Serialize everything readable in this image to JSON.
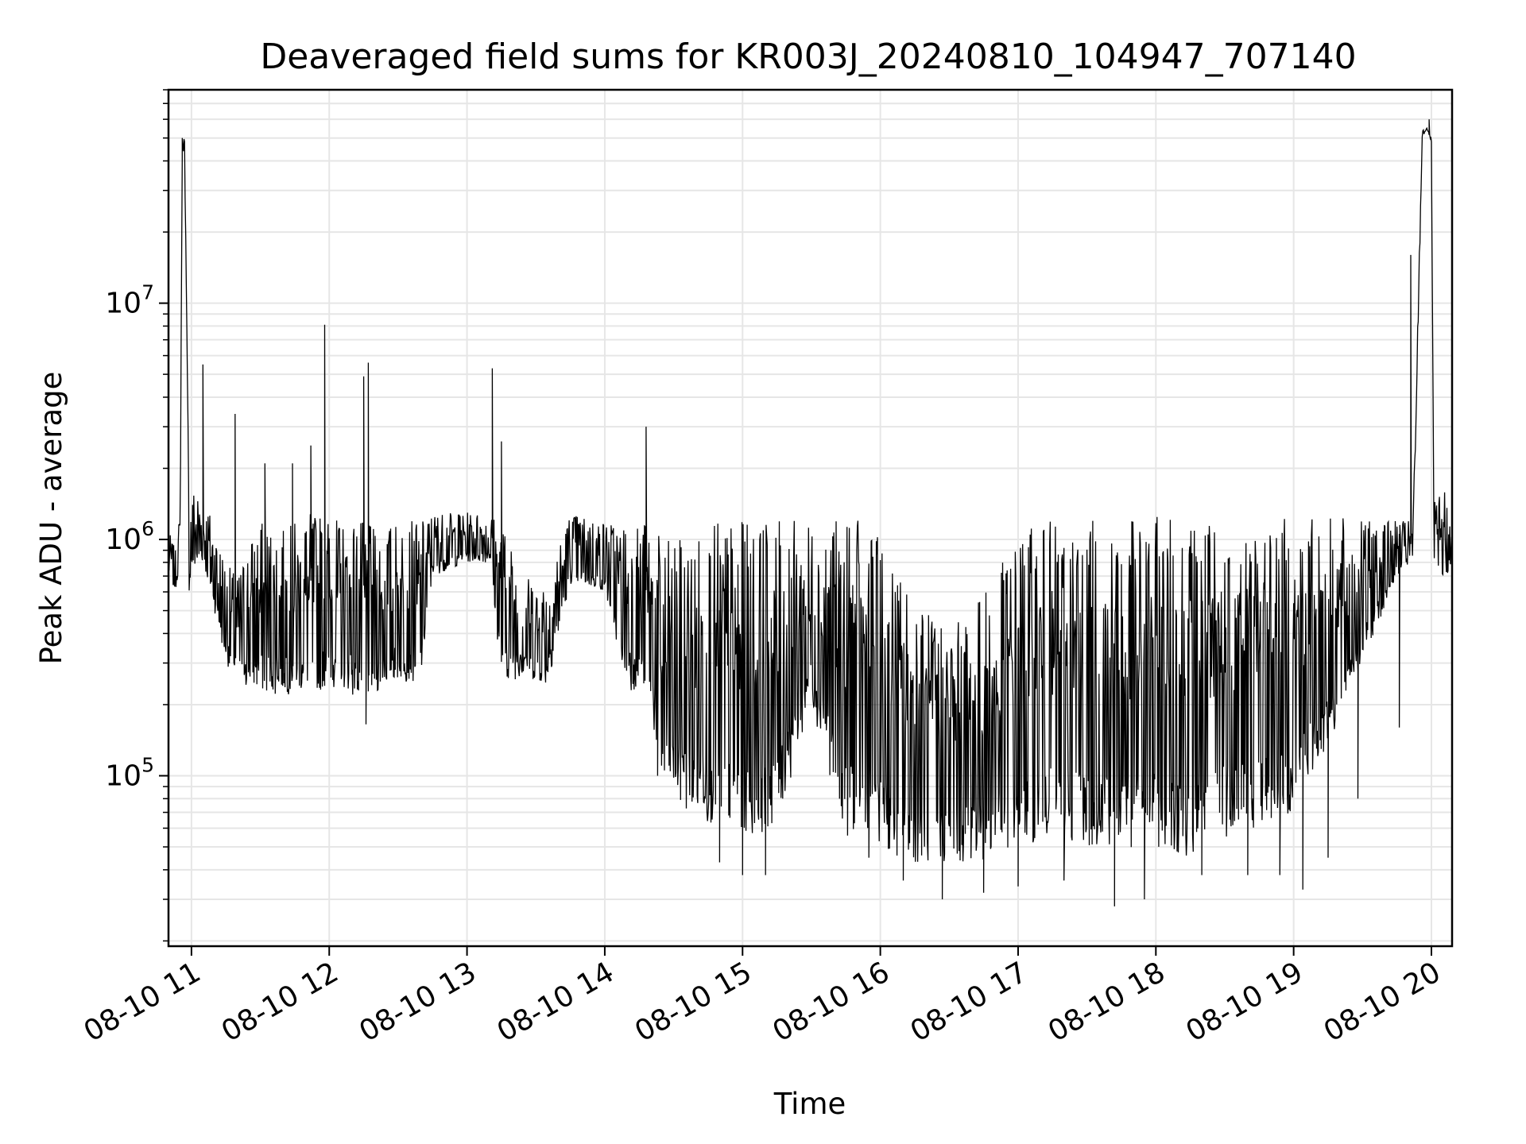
{
  "chart_data": {
    "type": "line",
    "title": "Deaveraged field sums for KR003J_20240810_104947_707140",
    "xlabel": "Time",
    "ylabel": "Peak ADU - average",
    "y_scale": "log",
    "grid": true,
    "line_color": "#000000",
    "grid_color": "#e6e6e6",
    "xlim": [
      "2024-08-10 10:50",
      "2024-08-10 20:09"
    ],
    "ylim": [
      19000,
      80000000
    ],
    "x_ticks": [
      "08-10 11",
      "08-10 12",
      "08-10 13",
      "08-10 14",
      "08-10 15",
      "08-10 16",
      "08-10 17",
      "08-10 18",
      "08-10 19",
      "08-10 20"
    ],
    "y_ticks": [
      {
        "base": "10",
        "exp": "5",
        "value": 100000
      },
      {
        "base": "10",
        "exp": "6",
        "value": 1000000
      },
      {
        "base": "10",
        "exp": "7",
        "value": 10000000
      }
    ],
    "series": [
      {
        "x": [
          "2024-08-10 10:50",
          "2024-08-10 10:53",
          "2024-08-10 10:55",
          "2024-08-10 10:56",
          "2024-08-10 10:57",
          "2024-08-10 10:59",
          "2024-08-10 11:00",
          "2024-08-10 11:05",
          "2024-08-10 11:10",
          "2024-08-10 11:12",
          "2024-08-10 11:15",
          "2024-08-10 11:20",
          "2024-08-10 11:25",
          "2024-08-10 11:30",
          "2024-08-10 11:40",
          "2024-08-10 11:50",
          "2024-08-10 11:58",
          "2024-08-10 12:05",
          "2024-08-10 12:15",
          "2024-08-10 12:20",
          "2024-08-10 12:30",
          "2024-08-10 12:40",
          "2024-08-10 12:45",
          "2024-08-10 13:00",
          "2024-08-10 13:10",
          "2024-08-10 13:15",
          "2024-08-10 13:25",
          "2024-08-10 13:35",
          "2024-08-10 13:45",
          "2024-08-10 14:00",
          "2024-08-10 14:10",
          "2024-08-10 14:19",
          "2024-08-10 14:25",
          "2024-08-10 14:35",
          "2024-08-10 14:50",
          "2024-08-10 15:00",
          "2024-08-10 15:15",
          "2024-08-10 15:30",
          "2024-08-10 15:45",
          "2024-08-10 15:55",
          "2024-08-10 16:05",
          "2024-08-10 16:20",
          "2024-08-10 16:35",
          "2024-08-10 16:50",
          "2024-08-10 17:00",
          "2024-08-10 17:15",
          "2024-08-10 17:30",
          "2024-08-10 17:45",
          "2024-08-10 18:00",
          "2024-08-10 18:15",
          "2024-08-10 18:30",
          "2024-08-10 18:45",
          "2024-08-10 19:00",
          "2024-08-10 19:15",
          "2024-08-10 19:30",
          "2024-08-10 19:45",
          "2024-08-10 19:52",
          "2024-08-10 19:56",
          "2024-08-10 19:58",
          "2024-08-10 20:00",
          "2024-08-10 20:01",
          "2024-08-10 20:03",
          "2024-08-10 20:06",
          "2024-08-10 20:09"
        ],
        "low": [
          700000,
          600000,
          800000,
          40000000,
          48000000,
          600000,
          700000,
          800000,
          500000,
          400000,
          300000,
          250000,
          230000,
          220000,
          220000,
          225000,
          230000,
          240000,
          200000,
          220000,
          250000,
          250000,
          700000,
          800000,
          800000,
          250000,
          260000,
          240000,
          650000,
          600000,
          230000,
          230000,
          80000,
          70000,
          60000,
          55000,
          60000,
          200000,
          55000,
          60000,
          45000,
          42000,
          42000,
          45000,
          50000,
          55000,
          50000,
          48000,
          50000,
          45000,
          55000,
          60000,
          70000,
          130000,
          300000,
          700000,
          800000,
          50000000,
          55000000,
          48000000,
          800000,
          650000,
          700000,
          750000
        ],
        "high": [
          1100000,
          900000,
          1300000,
          45000000,
          52000000,
          1300000,
          1700000,
          1500000,
          1200000,
          1000000,
          800000,
          700000,
          1000000,
          1200000,
          1100000,
          1300000,
          1300000,
          1200000,
          1200000,
          1100000,
          1200000,
          1200000,
          1300000,
          1300000,
          1300000,
          1200000,
          700000,
          700000,
          1300000,
          1200000,
          1200000,
          1200000,
          1000000,
          1000000,
          1200000,
          1200000,
          1200000,
          1200000,
          1200000,
          1200000,
          800000,
          500000,
          450000,
          700000,
          1100000,
          1200000,
          1200000,
          1200000,
          1250000,
          1250000,
          1200000,
          1200000,
          1250000,
          1250000,
          1200000,
          1200000,
          1200000,
          55000000,
          55000000,
          50000000,
          1500000,
          1500000,
          1600000,
          1000000
        ],
        "spikes": [
          {
            "x": "2024-08-10 10:56",
            "y": 50000000
          },
          {
            "x": "2024-08-10 11:05",
            "y": 5500000
          },
          {
            "x": "2024-08-10 11:19",
            "y": 3400000
          },
          {
            "x": "2024-08-10 11:32",
            "y": 2100000
          },
          {
            "x": "2024-08-10 11:44",
            "y": 2100000
          },
          {
            "x": "2024-08-10 11:52",
            "y": 2500000
          },
          {
            "x": "2024-08-10 11:58",
            "y": 8100000
          },
          {
            "x": "2024-08-10 12:15",
            "y": 4900000
          },
          {
            "x": "2024-08-10 12:17",
            "y": 5600000
          },
          {
            "x": "2024-08-10 13:11",
            "y": 5300000
          },
          {
            "x": "2024-08-10 13:15",
            "y": 2600000
          },
          {
            "x": "2024-08-10 14:18",
            "y": 3000000
          },
          {
            "x": "2024-08-10 19:51",
            "y": 16000000
          },
          {
            "x": "2024-08-10 19:59",
            "y": 60000000
          }
        ],
        "dips": [
          {
            "x": "2024-08-10 12:16",
            "y": 165000
          },
          {
            "x": "2024-08-10 14:23",
            "y": 100000
          },
          {
            "x": "2024-08-10 14:50",
            "y": 43000
          },
          {
            "x": "2024-08-10 15:00",
            "y": 38000
          },
          {
            "x": "2024-08-10 15:10",
            "y": 38000
          },
          {
            "x": "2024-08-10 15:55",
            "y": 45000
          },
          {
            "x": "2024-08-10 16:10",
            "y": 36000
          },
          {
            "x": "2024-08-10 16:27",
            "y": 30000
          },
          {
            "x": "2024-08-10 16:45",
            "y": 32000
          },
          {
            "x": "2024-08-10 17:00",
            "y": 34000
          },
          {
            "x": "2024-08-10 17:20",
            "y": 36000
          },
          {
            "x": "2024-08-10 17:42",
            "y": 28000
          },
          {
            "x": "2024-08-10 17:55",
            "y": 30000
          },
          {
            "x": "2024-08-10 18:20",
            "y": 38000
          },
          {
            "x": "2024-08-10 18:40",
            "y": 38000
          },
          {
            "x": "2024-08-10 18:54",
            "y": 38000
          },
          {
            "x": "2024-08-10 19:04",
            "y": 33000
          },
          {
            "x": "2024-08-10 19:15",
            "y": 45000
          },
          {
            "x": "2024-08-10 19:28",
            "y": 80000
          },
          {
            "x": "2024-08-10 19:46",
            "y": 160000
          }
        ]
      }
    ]
  }
}
